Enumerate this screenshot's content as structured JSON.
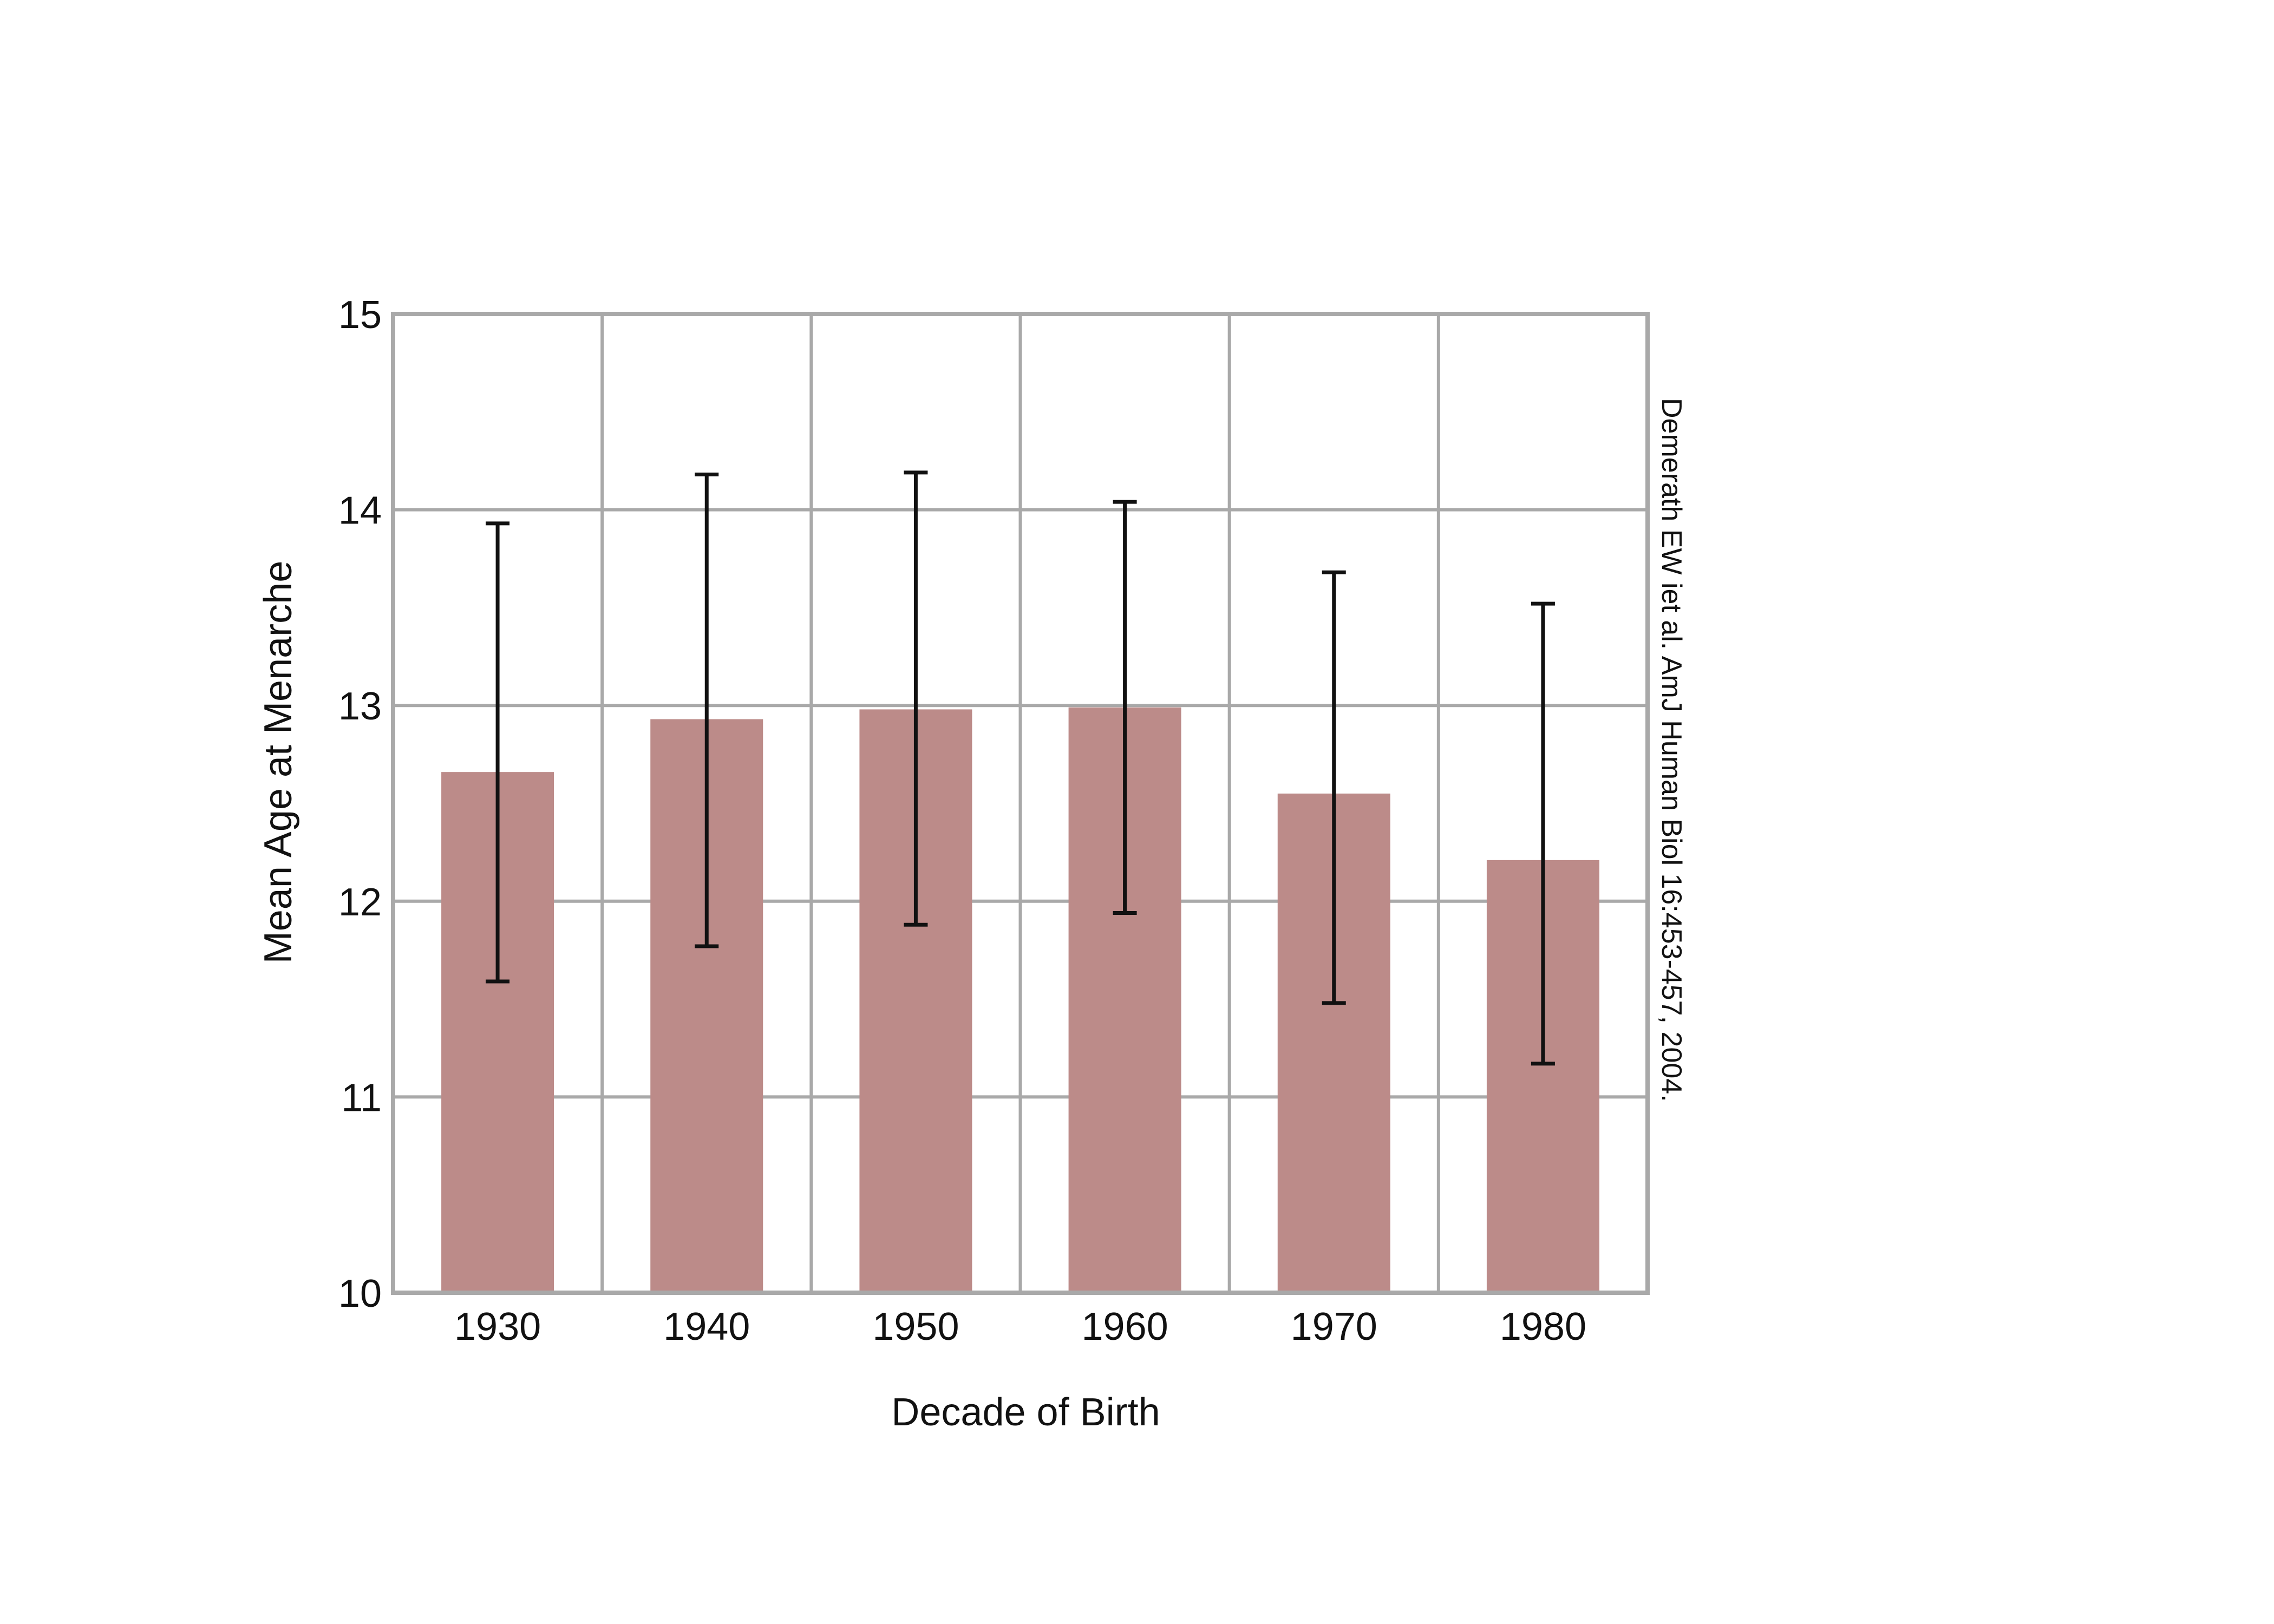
{
  "chart_data": {
    "type": "bar",
    "title": "",
    "xlabel": "Decade of Birth",
    "ylabel": "Mean Age at Menarche",
    "categories": [
      "1930",
      "1940",
      "1950",
      "1960",
      "1970",
      "1980"
    ],
    "values": [
      12.66,
      12.93,
      12.98,
      12.99,
      12.55,
      12.21
    ],
    "error_low": [
      11.59,
      11.77,
      11.88,
      11.94,
      11.48,
      11.17
    ],
    "error_high": [
      13.93,
      14.18,
      14.19,
      14.04,
      13.68,
      13.52
    ],
    "ylim": [
      10,
      15
    ],
    "yticks": [
      "10",
      "11",
      "12",
      "13",
      "14",
      "15"
    ],
    "grid": true,
    "bar_color": "#bc8b89",
    "grid_color": "#a9a9a9",
    "error_bar_color": "#111111",
    "annotation": "Demerath EW iet al. AmJ Human Biol 16:453-457, 2004."
  }
}
